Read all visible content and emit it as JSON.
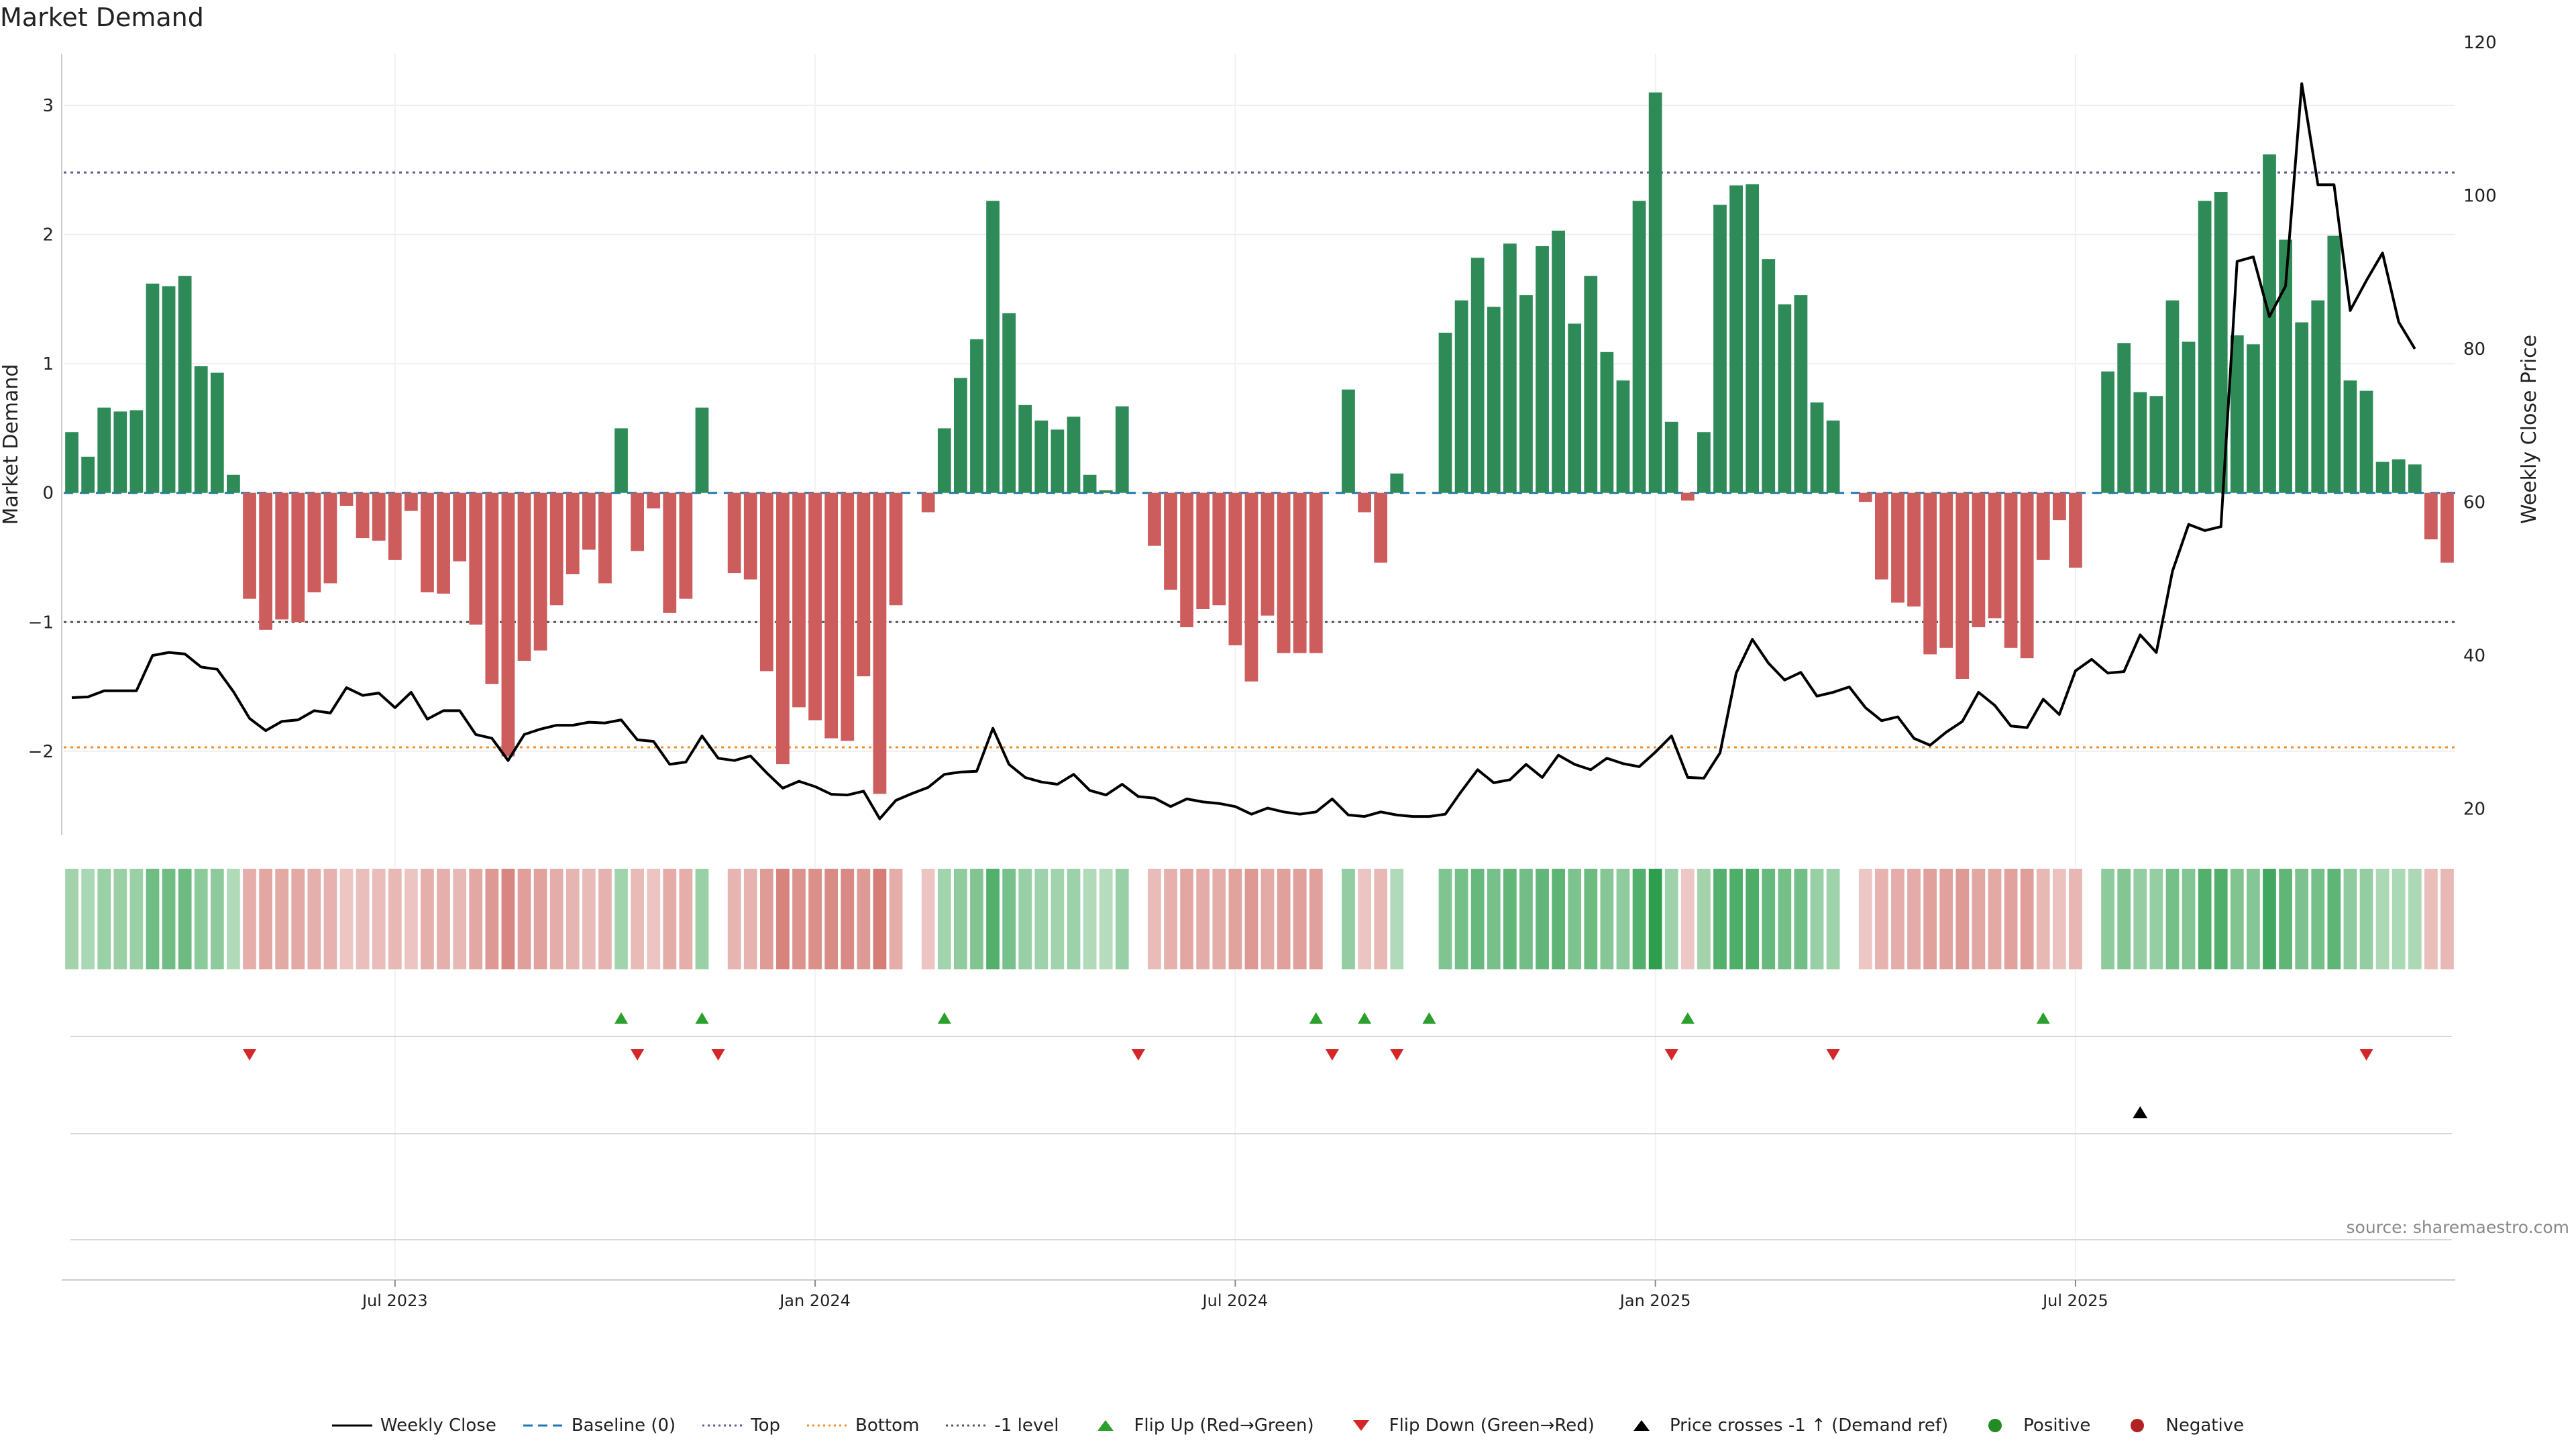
{
  "title": "Market Demand",
  "source": "source: sharemaestro.com",
  "colors": {
    "positive": "#2e8b57",
    "negative": "#cd5c5c",
    "price": "#000000",
    "top": "#5b5b9a",
    "bottom": "#f28e2b",
    "minus1": "#555555",
    "baseline": "#1f77b4",
    "flip_up": "#2ca02c",
    "flip_down": "#d62728"
  },
  "chart_data": {
    "type": "bar",
    "title": "Market Demand",
    "ylabel": "Market Demand",
    "y2label": "Weekly Close Price",
    "ylim": [
      -2.65,
      3.4
    ],
    "y2lim": [
      17,
      122
    ],
    "yticks": [
      -2,
      -1,
      0,
      1,
      2,
      3
    ],
    "y2ticks": [
      20,
      40,
      60,
      80,
      100,
      120
    ],
    "reference_lines": {
      "baseline": 0,
      "top": 2.48,
      "bottom": -1.97,
      "minus1": -1
    },
    "date_ticks": [
      {
        "label": "Jul 2023",
        "week": 20
      },
      {
        "label": "Jan 2024",
        "week": 46
      },
      {
        "label": "Jul 2024",
        "week": 72
      },
      {
        "label": "Jan 2025",
        "week": 98
      },
      {
        "label": "Jul 2025",
        "week": 124
      }
    ],
    "demand": [
      0.47,
      0.28,
      0.66,
      0.63,
      0.64,
      1.62,
      1.6,
      1.68,
      0.98,
      0.93,
      0.14,
      -0.82,
      -1.06,
      -0.98,
      -1.0,
      -0.77,
      -0.7,
      -0.1,
      -0.35,
      -0.37,
      -0.52,
      -0.14,
      -0.77,
      -0.78,
      -0.53,
      -1.02,
      -1.48,
      -2.04,
      -1.3,
      -1.22,
      -0.87,
      -0.63,
      -0.44,
      -0.7,
      0.5,
      -0.45,
      -0.12,
      -0.93,
      -0.82,
      0.66,
      0.0,
      -0.62,
      -0.67,
      -1.38,
      -2.1,
      -1.66,
      -1.76,
      -1.9,
      -1.92,
      -1.42,
      -2.33,
      -0.87,
      0.0,
      -0.15,
      0.5,
      0.89,
      1.19,
      2.26,
      1.39,
      0.68,
      0.56,
      0.49,
      0.59,
      0.14,
      0.02,
      0.67,
      0.0,
      -0.41,
      -0.75,
      -1.04,
      -0.9,
      -0.87,
      -1.18,
      -1.46,
      -0.95,
      -1.24,
      -1.24,
      -1.24,
      0.0,
      0.8,
      -0.15,
      -0.54,
      0.15,
      0.0,
      0.0,
      1.24,
      1.49,
      1.82,
      1.44,
      1.93,
      1.53,
      1.91,
      2.03,
      1.31,
      1.68,
      1.09,
      0.87,
      2.26,
      3.1,
      0.55,
      -0.06,
      0.47,
      2.23,
      2.38,
      2.39,
      1.81,
      1.46,
      1.53,
      0.7,
      0.56,
      0.0,
      -0.07,
      -0.67,
      -0.85,
      -0.88,
      -1.25,
      -1.2,
      -1.44,
      -1.04,
      -0.97,
      -1.2,
      -1.28,
      -0.52,
      -0.21,
      -0.58,
      0.0,
      0.94,
      1.16,
      0.78,
      0.75,
      1.49,
      1.17,
      2.26,
      2.33,
      1.22,
      1.15,
      2.62,
      1.96,
      1.32,
      1.49,
      1.99,
      0.87,
      0.79,
      0.24,
      0.26,
      0.22,
      -0.36,
      -0.54
    ],
    "price": [
      34.5,
      34.6,
      35.4,
      35.4,
      35.4,
      40.0,
      40.4,
      40.2,
      38.5,
      38.2,
      35.3,
      31.8,
      30.2,
      31.4,
      31.6,
      32.8,
      32.5,
      35.8,
      34.8,
      35.1,
      33.2,
      35.2,
      31.7,
      32.8,
      32.8,
      29.7,
      29.2,
      26.3,
      29.7,
      30.4,
      30.9,
      30.9,
      31.3,
      31.2,
      31.6,
      29.0,
      28.8,
      25.8,
      26.1,
      29.5,
      26.6,
      26.3,
      26.9,
      24.7,
      22.7,
      23.6,
      22.9,
      21.9,
      21.8,
      22.3,
      18.7,
      21.1,
      22.0,
      22.8,
      24.5,
      24.8,
      24.9,
      30.5,
      25.8,
      24.1,
      23.5,
      23.2,
      24.5,
      22.4,
      21.8,
      23.2,
      21.6,
      21.4,
      20.3,
      21.3,
      20.9,
      20.7,
      20.3,
      19.3,
      20.1,
      19.6,
      19.3,
      19.6,
      21.3,
      19.2,
      19.0,
      19.6,
      19.2,
      19.0,
      19.0,
      19.3,
      22.3,
      25.1,
      23.4,
      23.8,
      25.8,
      24.1,
      27.0,
      25.8,
      25.1,
      26.6,
      25.9,
      25.5,
      27.4,
      29.5,
      24.1,
      24.0,
      27.3,
      37.7,
      42.1,
      39.0,
      36.8,
      37.8,
      34.7,
      35.2,
      35.9,
      33.2,
      31.5,
      32.0,
      29.2,
      28.3,
      30.0,
      31.4,
      35.2,
      33.5,
      30.8,
      30.6,
      34.3,
      32.3,
      38.0,
      39.5,
      37.7,
      37.9,
      42.7,
      40.4,
      51.0,
      57.1,
      56.3,
      56.8,
      91.4,
      92.0,
      84.2,
      88.2,
      114.6,
      101.4,
      101.4,
      85.0,
      88.9,
      92.5,
      83.5,
      80.0
    ],
    "flip_up_weeks": [
      34,
      39,
      54,
      77,
      80,
      84,
      100,
      122
    ],
    "flip_down_weeks": [
      11,
      35,
      40,
      66,
      78,
      82,
      99,
      109,
      142
    ],
    "price_cross_weeks": [
      128
    ],
    "legend": [
      "Weekly Close",
      "Baseline (0)",
      "Top",
      "Bottom",
      "-1 level",
      "Flip Up (Red→Green)",
      "Flip Down (Green→Red)",
      "Price crosses -1 ↑ (Demand ref)",
      "Positive",
      "Negative"
    ]
  }
}
